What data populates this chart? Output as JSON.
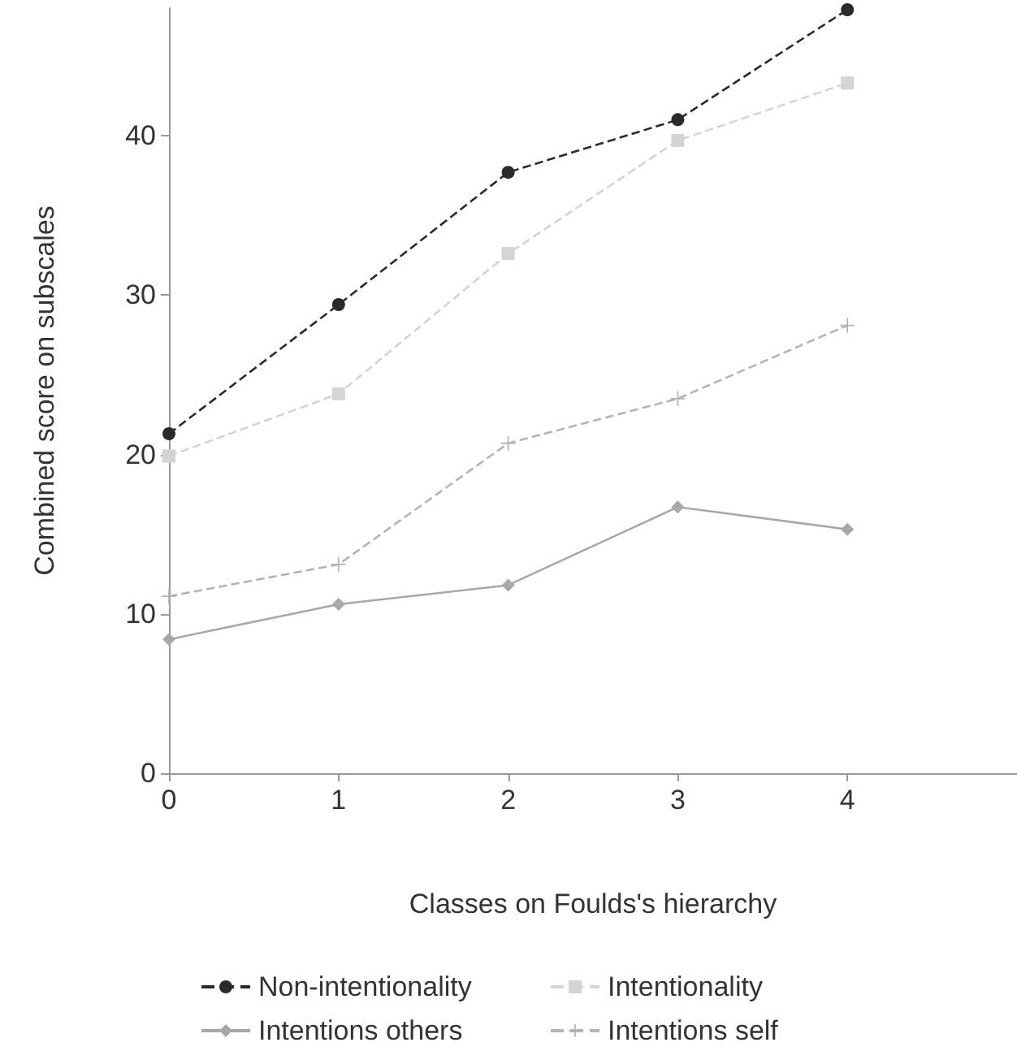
{
  "chart_data": {
    "type": "line",
    "xlabel": "Classes on Foulds's hierarchy",
    "ylabel": "Combined score on subscales",
    "x": [
      0,
      1,
      2,
      3,
      4
    ],
    "xlim": [
      0,
      5
    ],
    "xticks": [
      0,
      1,
      2,
      3,
      4
    ],
    "ylim": [
      0,
      48
    ],
    "yticks": [
      0,
      10,
      20,
      30,
      40
    ],
    "grid": false,
    "legend": "bottom",
    "series": [
      {
        "name": "Non-intentionality",
        "color": "#2a2a2a",
        "marker": "circle",
        "line_style": "dashed",
        "values": [
          21.3,
          29.4,
          37.7,
          41.0,
          47.9
        ]
      },
      {
        "name": "Intentionality",
        "color": "#d4d4d4",
        "marker": "square",
        "line_style": "dashed",
        "values": [
          19.9,
          23.8,
          32.6,
          39.7,
          43.3
        ]
      },
      {
        "name": "Intentions others",
        "color": "#a8a8a8",
        "marker": "diamond",
        "line_style": "solid",
        "values": [
          8.4,
          10.6,
          11.8,
          16.7,
          15.3
        ]
      },
      {
        "name": "Intentions self",
        "color": "#b4b4b4",
        "marker": "cross",
        "line_style": "dashed",
        "values": [
          11.1,
          13.1,
          20.7,
          23.5,
          28.1
        ]
      }
    ]
  }
}
